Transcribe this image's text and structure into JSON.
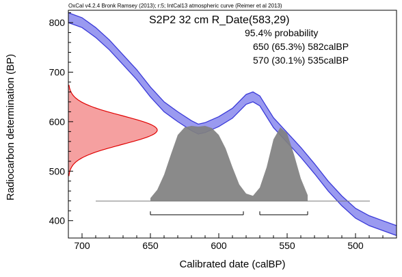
{
  "header": {
    "software_line": "OxCal v4.2.4 Bronk Ramsey (2013); r:5; IntCal13 atmospheric curve (Reimer et al 2013)"
  },
  "chart_data": {
    "type": "area",
    "title": "S2P2 32 cm R_Date(583,29)",
    "xlabel": "Calibrated date (calBP)",
    "ylabel": "Radiocarbon determination (BP)",
    "x_reversed": true,
    "xlim": [
      710,
      470
    ],
    "ylim": [
      365,
      825
    ],
    "x_ticks": [
      700,
      650,
      600,
      550,
      500
    ],
    "y_ticks": [
      400,
      500,
      600,
      700,
      800
    ],
    "annotations": {
      "probability_header": "95.4% probability",
      "ranges": [
        "650 (65.3%) 582calBP",
        "570 (30.1%) 535calBP"
      ]
    },
    "colors": {
      "calibration_curve": "#3a3ad8",
      "calibration_band_fill": "#9a9af0",
      "measurement_fill": "#f5a0a0",
      "measurement_line": "#e00000",
      "posterior_fill": "#808080"
    },
    "measurement": {
      "mean_BP": 583,
      "sigma_BP": 29
    },
    "calibration_curve": {
      "x_calBP": [
        710,
        700,
        690,
        680,
        670,
        660,
        650,
        640,
        630,
        620,
        615,
        610,
        600,
        590,
        580,
        575,
        570,
        565,
        560,
        555,
        550,
        545,
        540,
        530,
        520,
        510,
        500,
        490,
        480,
        470
      ],
      "y_BP": [
        810,
        800,
        780,
        755,
        725,
        695,
        660,
        630,
        610,
        592,
        585,
        588,
        600,
        617,
        645,
        650,
        642,
        620,
        598,
        583,
        568,
        553,
        538,
        505,
        470,
        440,
        415,
        400,
        390,
        380
      ],
      "band_sigma_BP": 10
    },
    "posterior_distribution": {
      "x_calBP": [
        650,
        645,
        640,
        635,
        630,
        625,
        620,
        615,
        610,
        605,
        600,
        595,
        590,
        585,
        580,
        575,
        570,
        565,
        560,
        555,
        550,
        545,
        540,
        535
      ],
      "density": [
        0.04,
        0.15,
        0.35,
        0.62,
        0.88,
        0.98,
        1.0,
        0.99,
        1.0,
        0.97,
        0.88,
        0.7,
        0.45,
        0.22,
        0.1,
        0.07,
        0.18,
        0.45,
        0.82,
        0.98,
        0.9,
        0.62,
        0.3,
        0.08
      ]
    },
    "ranges_95_4": [
      {
        "from_calBP": 650,
        "to_calBP": 582,
        "probability_pct": 65.3
      },
      {
        "from_calBP": 570,
        "to_calBP": 535,
        "probability_pct": 30.1
      }
    ]
  }
}
